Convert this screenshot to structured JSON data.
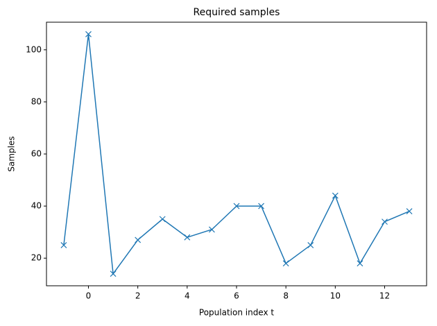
{
  "chart_data": {
    "type": "line",
    "title": "Required samples",
    "x_label": "Population index t",
    "y_label": "Samples",
    "x": [
      -1,
      0,
      1,
      2,
      3,
      4,
      5,
      6,
      7,
      8,
      9,
      10,
      11,
      12,
      13
    ],
    "series": [
      {
        "name": "Samples",
        "color": "#1f77b4",
        "marker": "x",
        "values": [
          25,
          106,
          14,
          27,
          35,
          28,
          31,
          40,
          40,
          18,
          25,
          44,
          18,
          34,
          38
        ]
      }
    ],
    "xlim": [
      -1.7,
      13.7
    ],
    "xticks": [
      0,
      2,
      4,
      6,
      8,
      10,
      12
    ],
    "ylim": [
      9.4,
      110.6
    ],
    "yticks": [
      20,
      40,
      60,
      80,
      100
    ],
    "grid": false
  }
}
